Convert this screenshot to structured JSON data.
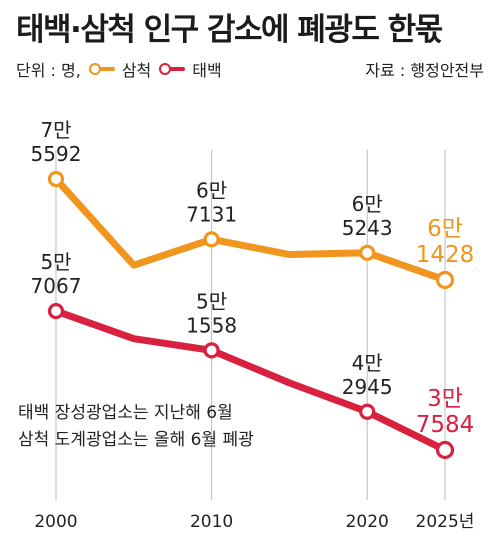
{
  "title": "태백·삼척 인구 감소에 폐광도 한몫",
  "unit_label": "단위 : 명,",
  "source": "자료 : 행정안전부",
  "note_lines": [
    "태백 장성광업소는 지난해 6월",
    "삼척 도계광업소는 올해 6월 폐광"
  ],
  "colors": {
    "samcheok": "#f0961e",
    "taebaek": "#d7213f",
    "grid": "#bdbdbd",
    "text": "#222222"
  },
  "chart_data": {
    "type": "line",
    "x_tick_labels": [
      "2000",
      "2010",
      "2020",
      "2025년"
    ],
    "x_tick_values": [
      2000,
      2010,
      2020,
      2025
    ],
    "series": [
      {
        "name": "삼척",
        "color": "#f0961e",
        "x": [
          2000,
          2005,
          2010,
          2015,
          2020,
          2025
        ],
        "values": [
          75592,
          63500,
          67131,
          65000,
          65243,
          61428
        ],
        "labels": [
          {
            "x": 2000,
            "lines": [
              "7만",
              "5592"
            ]
          },
          {
            "x": 2010,
            "lines": [
              "6만",
              "7131"
            ]
          },
          {
            "x": 2020,
            "lines": [
              "6만",
              "5243"
            ]
          },
          {
            "x": 2025,
            "lines": [
              "6만",
              "1428"
            ],
            "highlight": true
          }
        ]
      },
      {
        "name": "태백",
        "color": "#d7213f",
        "x": [
          2000,
          2005,
          2010,
          2015,
          2020,
          2025
        ],
        "values": [
          57067,
          53200,
          51558,
          47000,
          42945,
          37584
        ],
        "labels": [
          {
            "x": 2000,
            "lines": [
              "5만",
              "7067"
            ]
          },
          {
            "x": 2010,
            "lines": [
              "5만",
              "1558"
            ]
          },
          {
            "x": 2020,
            "lines": [
              "4만",
              "2945"
            ]
          },
          {
            "x": 2025,
            "lines": [
              "3만",
              "7584"
            ],
            "highlight": true
          }
        ]
      }
    ]
  }
}
